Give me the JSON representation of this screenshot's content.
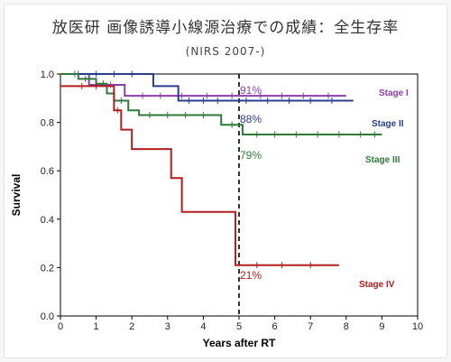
{
  "header": {
    "title": "放医研 画像誘導小線源治療での成績：全生存率",
    "subtitle": "(NIRS 2007-)"
  },
  "chart_data": {
    "type": "line",
    "step": true,
    "xlabel": "Years after RT",
    "ylabel": "Survival",
    "xlim": [
      0,
      10
    ],
    "ylim": [
      0,
      1.0
    ],
    "xticks": [
      "0",
      "1",
      "2",
      "3",
      "4",
      "5",
      "6",
      "7",
      "8",
      "9",
      "10"
    ],
    "yticks": [
      "0.0",
      "0.2",
      "0.4",
      "0.6",
      "0.8",
      "1.0"
    ],
    "reference_line": {
      "x": 5,
      "style": "dashed"
    },
    "series": [
      {
        "name": "Stage I",
        "color": "#8e3da8",
        "label_at_5y": "91%",
        "steps": [
          [
            0,
            1.0
          ],
          [
            0.8,
            0.955
          ],
          [
            1.8,
            0.91
          ],
          [
            8.0,
            0.91
          ]
        ],
        "censors": [
          0.4,
          1.0,
          1.4,
          2.3,
          2.8,
          3.4,
          4.1,
          4.8,
          5.6,
          6.2,
          6.8,
          7.5
        ]
      },
      {
        "name": "Stage II",
        "color": "#2a3d8f",
        "label_at_5y": "88%",
        "steps": [
          [
            0,
            1.0
          ],
          [
            2.6,
            0.95
          ],
          [
            3.3,
            0.89
          ],
          [
            8.2,
            0.89
          ]
        ],
        "censors": [
          0.5,
          1.0,
          1.5,
          2.0,
          3.6,
          4.0,
          4.4,
          5.2,
          5.8,
          6.4,
          7.0,
          7.6
        ]
      },
      {
        "name": "Stage III",
        "color": "#2f7a3a",
        "label_at_5y": "79%",
        "steps": [
          [
            0,
            1.0
          ],
          [
            0.5,
            0.98
          ],
          [
            1.0,
            0.96
          ],
          [
            1.3,
            0.92
          ],
          [
            1.5,
            0.89
          ],
          [
            1.9,
            0.85
          ],
          [
            2.2,
            0.83
          ],
          [
            4.5,
            0.79
          ],
          [
            5.1,
            0.75
          ],
          [
            9.0,
            0.75
          ]
        ],
        "censors": [
          0.7,
          1.2,
          1.7,
          2.5,
          3.0,
          3.5,
          4.0,
          4.8,
          5.5,
          6.0,
          6.6,
          7.2,
          7.8,
          8.4,
          8.8
        ]
      },
      {
        "name": "Stage IV",
        "color": "#b21e1e",
        "label_at_5y": "21%",
        "steps": [
          [
            0,
            0.95
          ],
          [
            1.5,
            0.85
          ],
          [
            1.7,
            0.77
          ],
          [
            2.0,
            0.69
          ],
          [
            3.1,
            0.57
          ],
          [
            3.4,
            0.43
          ],
          [
            4.9,
            0.21
          ],
          [
            7.8,
            0.21
          ]
        ],
        "censors": [
          0.6,
          1.0,
          1.6,
          5.5,
          6.2,
          7.0
        ]
      }
    ]
  }
}
